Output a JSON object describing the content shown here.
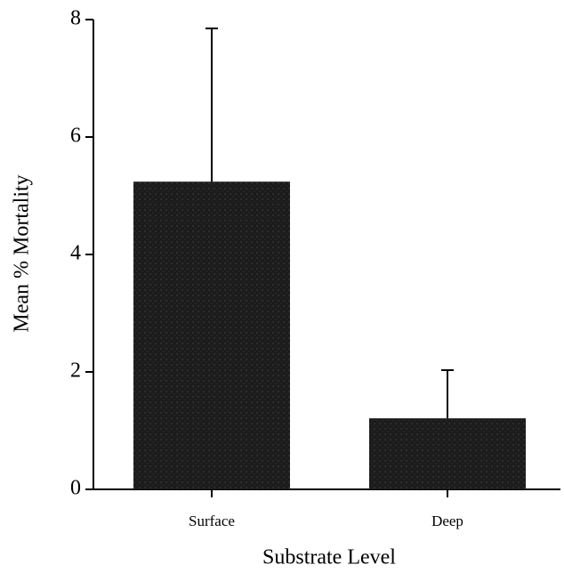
{
  "chart_data": {
    "type": "bar",
    "xlabel": "Substrate Level",
    "ylabel": "Mean % Mortality",
    "categories": [
      "Surface",
      "Deep"
    ],
    "values": [
      5.24,
      1.21
    ],
    "errors": [
      2.61,
      0.82
    ],
    "color": "#1c1c1c",
    "ylim": [
      0,
      8
    ],
    "yticks": [
      0,
      2,
      4,
      6,
      8
    ],
    "grid": false
  }
}
